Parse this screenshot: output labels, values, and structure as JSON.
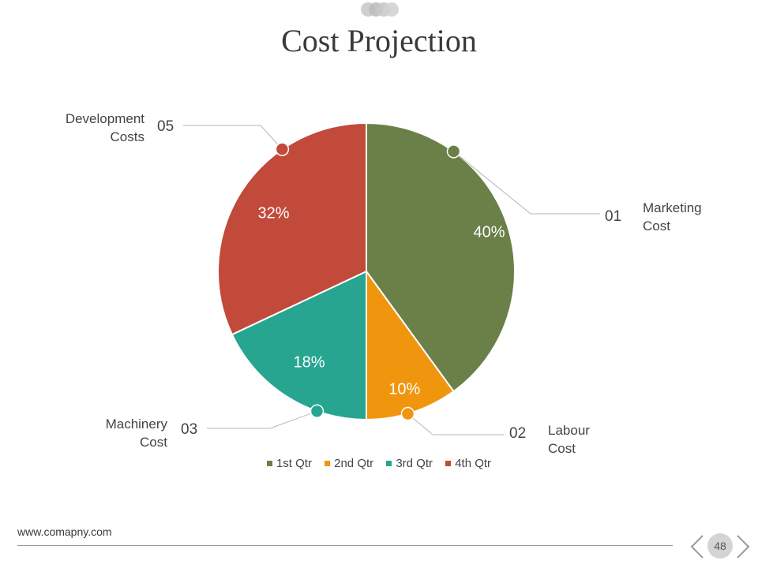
{
  "slide": {
    "title": "Cost Projection",
    "footer_url": "www.comapny.com",
    "page_number": "48"
  },
  "chart_data": {
    "type": "pie",
    "title": "Cost Projection",
    "legend_position": "bottom",
    "series": [
      {
        "name": "1st Qtr",
        "value": 40,
        "label": "40%",
        "number": "01",
        "category_line1": "Marketing",
        "category_line2": "Cost",
        "color": "#6b8049"
      },
      {
        "name": "2nd Qtr",
        "value": 10,
        "label": "10%",
        "number": "02",
        "category_line1": "Labour",
        "category_line2": "Cost",
        "color": "#f0960e"
      },
      {
        "name": "3rd Qtr",
        "value": 18,
        "label": "18%",
        "number": "03",
        "category_line1": "Machinery",
        "category_line2": "Cost",
        "color": "#27a591"
      },
      {
        "name": "4th Qtr",
        "value": 32,
        "label": "32%",
        "number": "05",
        "category_line1": "Development",
        "category_line2": "Costs",
        "color": "#c24a3b"
      }
    ]
  }
}
